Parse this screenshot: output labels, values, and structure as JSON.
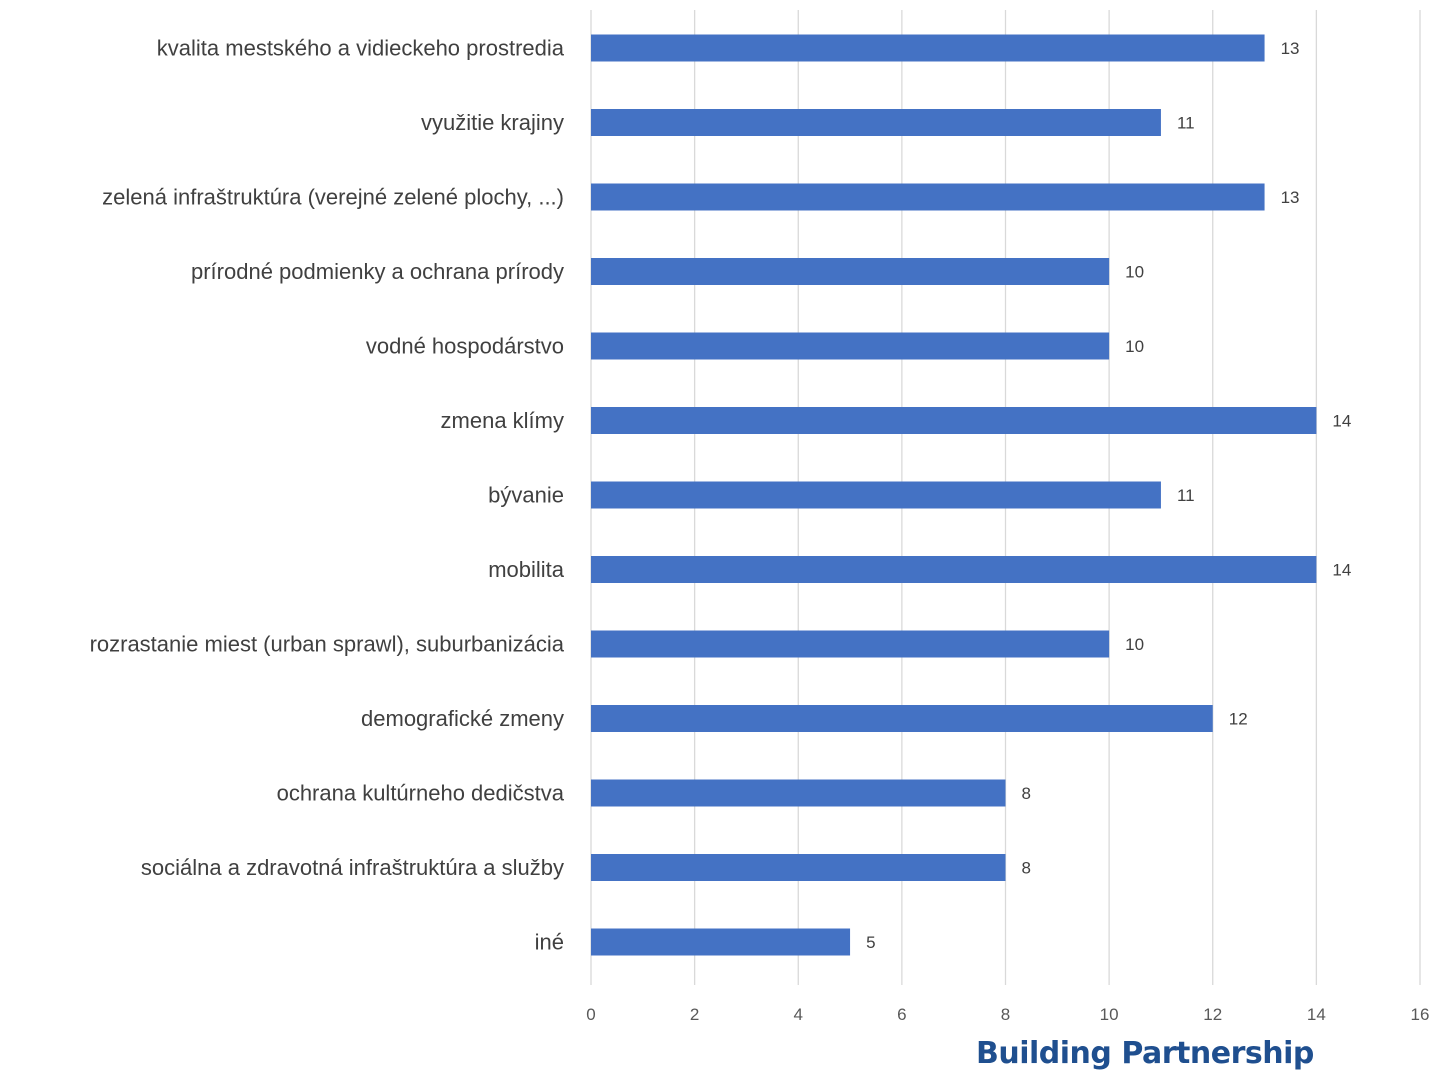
{
  "chart_data": {
    "type": "bar",
    "orientation": "horizontal",
    "categories": [
      "kvalita mestského a vidieckeho prostredia",
      "využitie krajiny",
      "zelená infraštruktúra (verejné zelené plochy, ...)",
      "prírodné podmienky a ochrana prírody",
      "vodné hospodárstvo",
      "zmena klímy",
      "bývanie",
      "mobilita",
      "rozrastanie miest (urban sprawl), suburbanizácia",
      "demografické zmeny",
      "ochrana kultúrneho dedičstva",
      "sociálna a zdravotná infraštruktúra a služby",
      "iné"
    ],
    "values": [
      13,
      11,
      13,
      10,
      10,
      14,
      11,
      14,
      10,
      12,
      8,
      8,
      5
    ],
    "xlim": [
      0,
      16
    ],
    "xticks": [
      0,
      2,
      4,
      6,
      8,
      10,
      12,
      14,
      16
    ],
    "grid": "vertical",
    "data_labels": true,
    "bar_color": "#4472c4",
    "grid_color": "#d9d9d9"
  },
  "branding": {
    "text": "Building Partnership",
    "color": "#1f4f8f"
  }
}
